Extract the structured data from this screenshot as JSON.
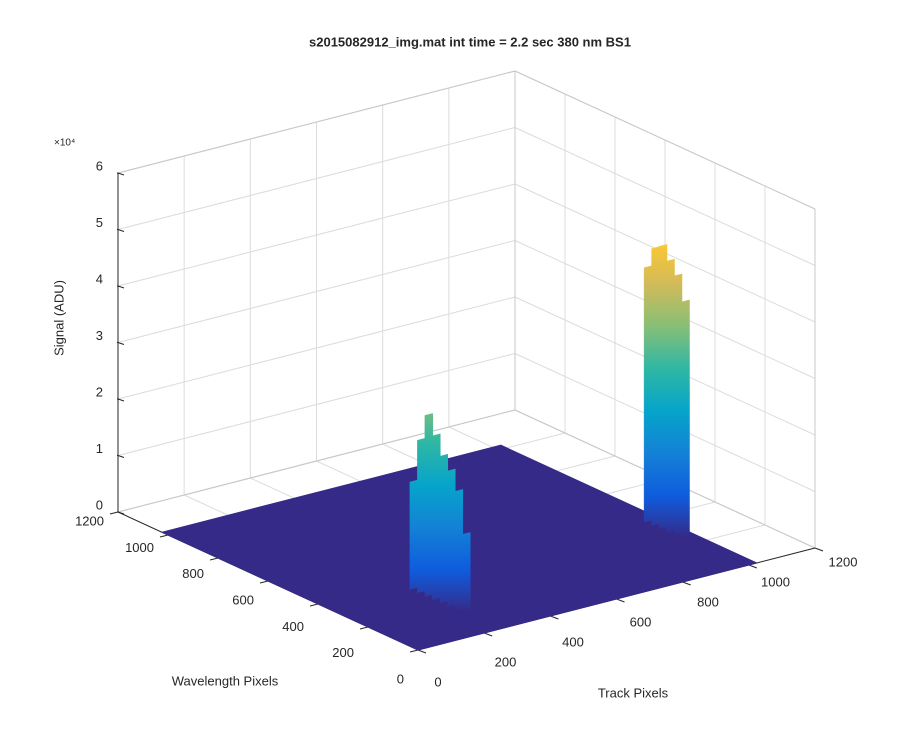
{
  "chart_data": {
    "type": "surface3d",
    "title": "s2015082912_img.mat int time = 2.2 sec  380 nm BS1",
    "xlabel": "Track Pixels",
    "ylabel": "Wavelength Pixels",
    "zlabel": "Signal (ADU)",
    "zscale_label": "×10⁴",
    "xlim": [
      0,
      1200
    ],
    "xticks": [
      0,
      200,
      400,
      600,
      800,
      1000,
      1200
    ],
    "ylim": [
      0,
      1200
    ],
    "yticks": [
      0,
      200,
      400,
      600,
      800,
      1000,
      1200
    ],
    "zlim": [
      0,
      6
    ],
    "zticks": [
      0,
      1,
      2,
      3,
      4,
      5,
      6
    ],
    "grid": true,
    "colormap": [
      "#352a87",
      "#0f5cdd",
      "#1481d6",
      "#06a4ca",
      "#2eb7a4",
      "#87bf77",
      "#d1bb59",
      "#fec832",
      "#f9fb0e"
    ],
    "surface": {
      "xlim": [
        0,
        1024
      ],
      "ylim": [
        0,
        1024
      ],
      "z": 0,
      "color": "#352a87"
    },
    "series": [
      {
        "x": 252,
        "y": [
          140,
          170,
          200,
          230,
          260,
          290,
          320,
          350
        ],
        "values": [
          1.4,
          2.1,
          2.4,
          2.6,
          2.9,
          3.2,
          2.7,
          1.9
        ]
      },
      {
        "x": 990,
        "y": [
          240,
          270,
          300,
          330,
          360,
          390
        ],
        "values": [
          4.2,
          4.6,
          4.8,
          5.0,
          4.9,
          4.5
        ]
      }
    ]
  }
}
